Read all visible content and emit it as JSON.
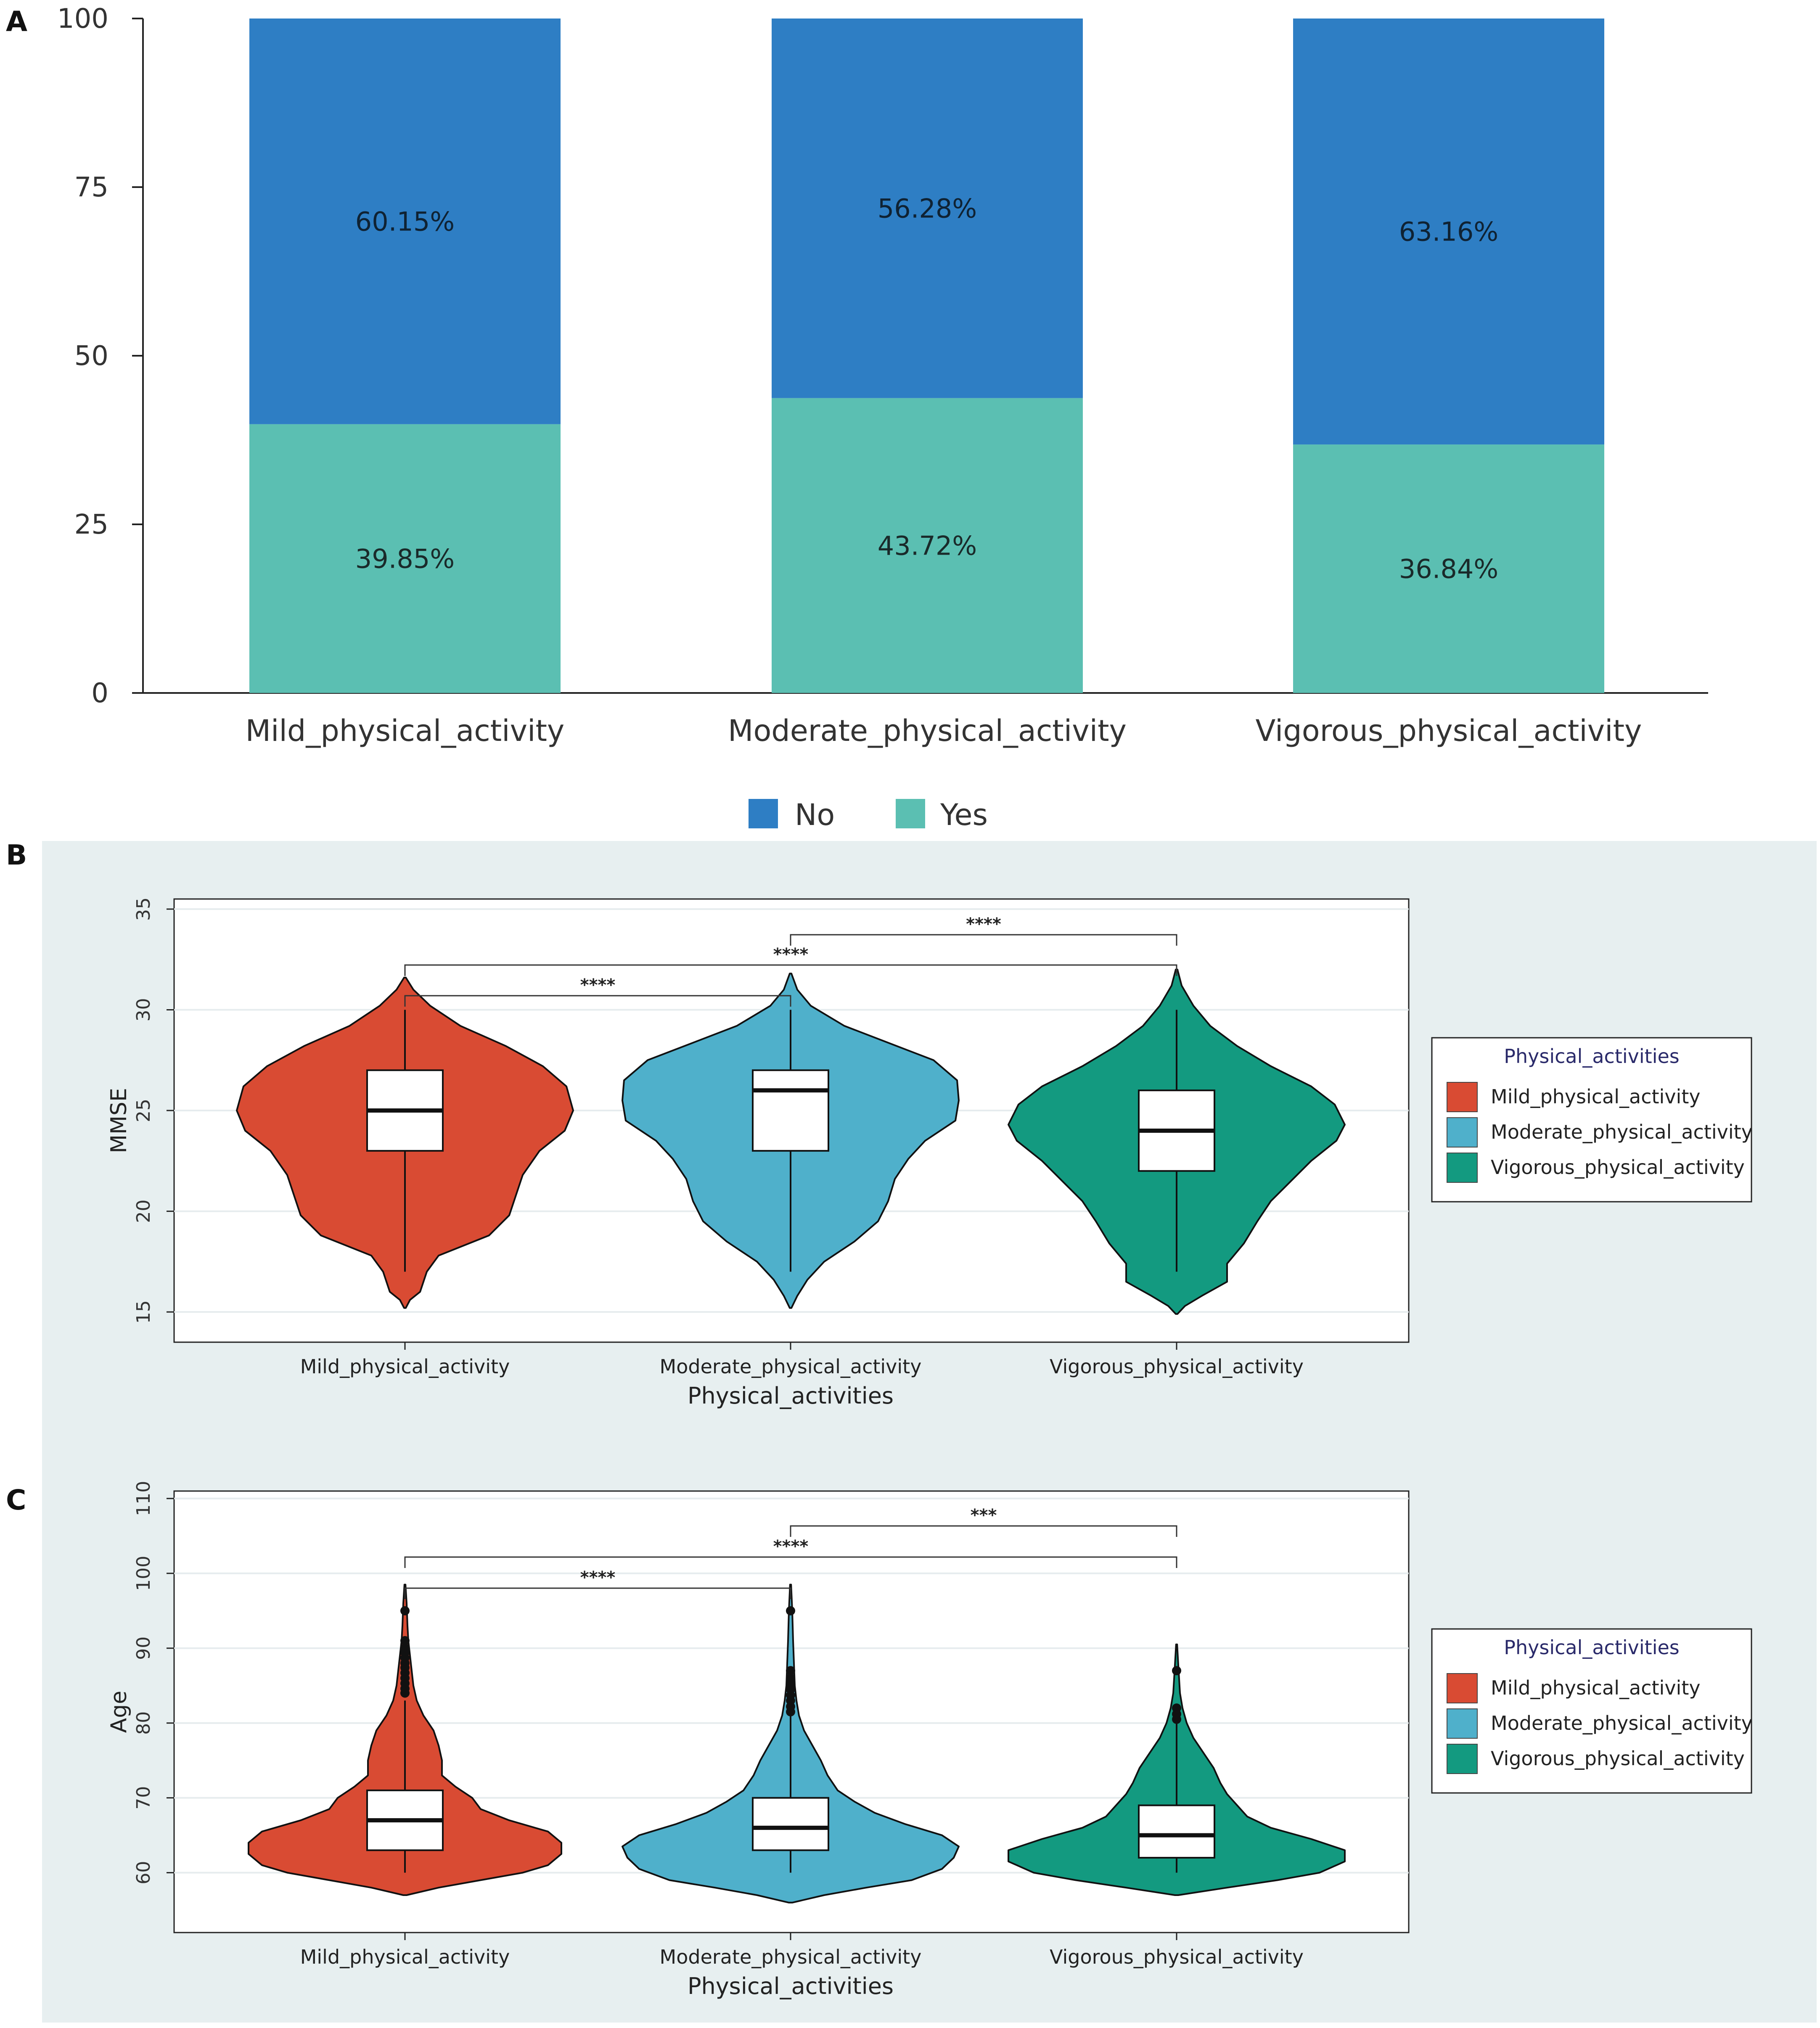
{
  "panel_labels": {
    "a": "A",
    "b": "B",
    "c": "C"
  },
  "colors": {
    "no": "#2e7ec4",
    "yes": "#5bbfb2",
    "mild": "#d94b33",
    "moderate": "#4fb0cb",
    "vigorous": "#139a80",
    "panel_bg": "#e7eff0"
  },
  "chart_data": [
    {
      "id": "A",
      "type": "bar",
      "stacked": true,
      "title": "",
      "xlabel": "",
      "ylabel": "",
      "ylim": [
        0,
        100
      ],
      "yticks": [
        "0",
        "25",
        "50",
        "75",
        "100"
      ],
      "categories": [
        "Mild_physical_activity",
        "Moderate_physical_activity",
        "Vigorous_physical_activity"
      ],
      "series": [
        {
          "name": "Yes",
          "values": [
            39.85,
            43.72,
            36.84
          ],
          "labels": [
            "39.85%",
            "43.72%",
            "36.84%"
          ]
        },
        {
          "name": "No",
          "values": [
            60.15,
            56.28,
            63.16
          ],
          "labels": [
            "60.15%",
            "56.28%",
            "63.16%"
          ]
        }
      ],
      "legend": {
        "position": "bottom",
        "entries": [
          "No",
          "Yes"
        ]
      }
    },
    {
      "id": "B",
      "type": "violin",
      "xlabel": "Physical_activities",
      "ylabel": "MMSE",
      "ylim": [
        13.5,
        35.5
      ],
      "yticks": [
        "15",
        "20",
        "25",
        "30",
        "35"
      ],
      "categories": [
        "Mild_physical_activity",
        "Moderate_physical_activity",
        "Vigorous_physical_activity"
      ],
      "groups": [
        {
          "name": "Mild_physical_activity",
          "min": 17,
          "q1": 23,
          "median": 25,
          "q3": 27,
          "max": 30,
          "outliers": [],
          "violin": {
            "lo": 15.2,
            "hi": 31.6,
            "halfwidth": [
              [
                15.2,
                0.005
              ],
              [
                15.6,
                0.03
              ],
              [
                16.0,
                0.09
              ],
              [
                17.0,
                0.13
              ],
              [
                17.8,
                0.2
              ],
              [
                18.8,
                0.5
              ],
              [
                19.8,
                0.62
              ],
              [
                20.8,
                0.66
              ],
              [
                21.8,
                0.7
              ],
              [
                23.0,
                0.8
              ],
              [
                24.0,
                0.95
              ],
              [
                25.0,
                1.0
              ],
              [
                26.2,
                0.96
              ],
              [
                27.2,
                0.82
              ],
              [
                28.2,
                0.6
              ],
              [
                29.2,
                0.33
              ],
              [
                30.2,
                0.15
              ],
              [
                31.0,
                0.05
              ],
              [
                31.6,
                0.005
              ]
            ]
          }
        },
        {
          "name": "Moderate_physical_activity",
          "min": 17,
          "q1": 23,
          "median": 26,
          "q3": 27,
          "max": 30,
          "outliers": [],
          "violin": {
            "lo": 15.2,
            "hi": 31.8,
            "halfwidth": [
              [
                15.2,
                0.005
              ],
              [
                15.8,
                0.04
              ],
              [
                16.6,
                0.1
              ],
              [
                17.5,
                0.2
              ],
              [
                18.5,
                0.38
              ],
              [
                19.5,
                0.52
              ],
              [
                20.5,
                0.58
              ],
              [
                21.6,
                0.62
              ],
              [
                22.6,
                0.7
              ],
              [
                23.5,
                0.8
              ],
              [
                24.5,
                0.98
              ],
              [
                25.5,
                1.0
              ],
              [
                26.5,
                0.99
              ],
              [
                27.5,
                0.85
              ],
              [
                28.3,
                0.6
              ],
              [
                29.2,
                0.32
              ],
              [
                30.2,
                0.12
              ],
              [
                31.0,
                0.04
              ],
              [
                31.8,
                0.005
              ]
            ]
          }
        },
        {
          "name": "Vigorous_physical_activity",
          "min": 17,
          "q1": 22,
          "median": 24,
          "q3": 26,
          "max": 30,
          "outliers": [],
          "violin": {
            "lo": 14.9,
            "hi": 32.0,
            "halfwidth": [
              [
                14.9,
                0.005
              ],
              [
                15.3,
                0.05
              ],
              [
                15.8,
                0.15
              ],
              [
                16.5,
                0.3
              ],
              [
                17.4,
                0.3
              ],
              [
                18.4,
                0.4
              ],
              [
                19.5,
                0.48
              ],
              [
                20.5,
                0.56
              ],
              [
                21.5,
                0.68
              ],
              [
                22.5,
                0.8
              ],
              [
                23.5,
                0.95
              ],
              [
                24.3,
                1.0
              ],
              [
                25.3,
                0.94
              ],
              [
                26.2,
                0.8
              ],
              [
                27.2,
                0.56
              ],
              [
                28.2,
                0.36
              ],
              [
                29.2,
                0.2
              ],
              [
                30.2,
                0.1
              ],
              [
                31.2,
                0.03
              ],
              [
                32.0,
                0.005
              ]
            ]
          }
        }
      ],
      "comparisons": [
        {
          "from": 0,
          "to": 1,
          "label": "****",
          "level": 0
        },
        {
          "from": 0,
          "to": 2,
          "label": "****",
          "level": 1
        },
        {
          "from": 1,
          "to": 2,
          "label": "****",
          "level": 2
        }
      ],
      "legend": {
        "title": "Physical_activities",
        "position": "right",
        "entries": [
          "Mild_physical_activity",
          "Moderate_physical_activity",
          "Vigorous_physical_activity"
        ]
      }
    },
    {
      "id": "C",
      "type": "violin",
      "xlabel": "Physical_activities",
      "ylabel": "Age",
      "ylim": [
        52,
        111
      ],
      "yticks": [
        "60",
        "70",
        "80",
        "90",
        "100",
        "110"
      ],
      "categories": [
        "Mild_physical_activity",
        "Moderate_physical_activity",
        "Vigorous_physical_activity"
      ],
      "groups": [
        {
          "name": "Mild_physical_activity",
          "min": 60,
          "q1": 63,
          "median": 67,
          "q3": 71,
          "max": 83,
          "outliers": [
            84,
            84.6,
            85.3,
            86,
            86.7,
            87.4,
            88,
            88.7,
            89.4,
            90,
            91,
            95
          ],
          "violin": {
            "lo": 57,
            "hi": 98.5,
            "halfwidth": [
              [
                57.0,
                0.01
              ],
              [
                58.0,
                0.2
              ],
              [
                59.0,
                0.45
              ],
              [
                60.0,
                0.7
              ],
              [
                61.0,
                0.85
              ],
              [
                62.5,
                0.93
              ],
              [
                64.0,
                0.93
              ],
              [
                65.5,
                0.85
              ],
              [
                67.0,
                0.62
              ],
              [
                68.5,
                0.45
              ],
              [
                70.0,
                0.4
              ],
              [
                71.5,
                0.3
              ],
              [
                73.0,
                0.22
              ],
              [
                75.0,
                0.22
              ],
              [
                77.0,
                0.2
              ],
              [
                79.0,
                0.17
              ],
              [
                81.0,
                0.11
              ],
              [
                83.0,
                0.07
              ],
              [
                85.0,
                0.05
              ],
              [
                87.0,
                0.04
              ],
              [
                89.0,
                0.03
              ],
              [
                91.0,
                0.02
              ],
              [
                93.0,
                0.015
              ],
              [
                96.0,
                0.01
              ],
              [
                98.5,
                0.003
              ]
            ]
          }
        },
        {
          "name": "Moderate_physical_activity",
          "min": 60,
          "q1": 63,
          "median": 66,
          "q3": 70,
          "max": 81,
          "outliers": [
            81.5,
            82.2,
            83,
            83.7,
            84.5,
            85.3,
            86,
            87,
            95
          ],
          "violin": {
            "lo": 56,
            "hi": 98.5,
            "halfwidth": [
              [
                56.0,
                0.01
              ],
              [
                57.0,
                0.2
              ],
              [
                58.0,
                0.45
              ],
              [
                59.0,
                0.72
              ],
              [
                60.5,
                0.9
              ],
              [
                62.0,
                0.97
              ],
              [
                63.5,
                1.0
              ],
              [
                65.0,
                0.9
              ],
              [
                66.5,
                0.68
              ],
              [
                68.0,
                0.5
              ],
              [
                69.5,
                0.38
              ],
              [
                71.0,
                0.28
              ],
              [
                73.0,
                0.22
              ],
              [
                75.0,
                0.18
              ],
              [
                77.0,
                0.13
              ],
              [
                79.0,
                0.08
              ],
              [
                81.0,
                0.05
              ],
              [
                83.0,
                0.035
              ],
              [
                85.0,
                0.025
              ],
              [
                88.0,
                0.02
              ],
              [
                91.0,
                0.015
              ],
              [
                95.0,
                0.01
              ],
              [
                98.5,
                0.003
              ]
            ]
          }
        },
        {
          "name": "Vigorous_physical_activity",
          "min": 60,
          "q1": 62,
          "median": 65,
          "q3": 69,
          "max": 80,
          "outliers": [
            80.5,
            81.2,
            82,
            87
          ],
          "violin": {
            "lo": 57,
            "hi": 90.5,
            "halfwidth": [
              [
                57.0,
                0.01
              ],
              [
                58.0,
                0.3
              ],
              [
                59.0,
                0.6
              ],
              [
                60.0,
                0.85
              ],
              [
                61.5,
                1.0
              ],
              [
                63.0,
                1.0
              ],
              [
                64.5,
                0.8
              ],
              [
                66.0,
                0.56
              ],
              [
                67.5,
                0.42
              ],
              [
                69.0,
                0.36
              ],
              [
                70.5,
                0.3
              ],
              [
                72.0,
                0.26
              ],
              [
                74.0,
                0.22
              ],
              [
                76.0,
                0.16
              ],
              [
                78.0,
                0.1
              ],
              [
                80.0,
                0.06
              ],
              [
                82.0,
                0.035
              ],
              [
                84.0,
                0.02
              ],
              [
                87.0,
                0.012
              ],
              [
                90.5,
                0.003
              ]
            ]
          }
        }
      ],
      "comparisons": [
        {
          "from": 0,
          "to": 1,
          "label": "****",
          "level": 0
        },
        {
          "from": 0,
          "to": 2,
          "label": "****",
          "level": 1
        },
        {
          "from": 1,
          "to": 2,
          "label": "***",
          "level": 2
        }
      ],
      "legend": {
        "title": "Physical_activities",
        "position": "right",
        "entries": [
          "Mild_physical_activity",
          "Moderate_physical_activity",
          "Vigorous_physical_activity"
        ]
      }
    }
  ]
}
